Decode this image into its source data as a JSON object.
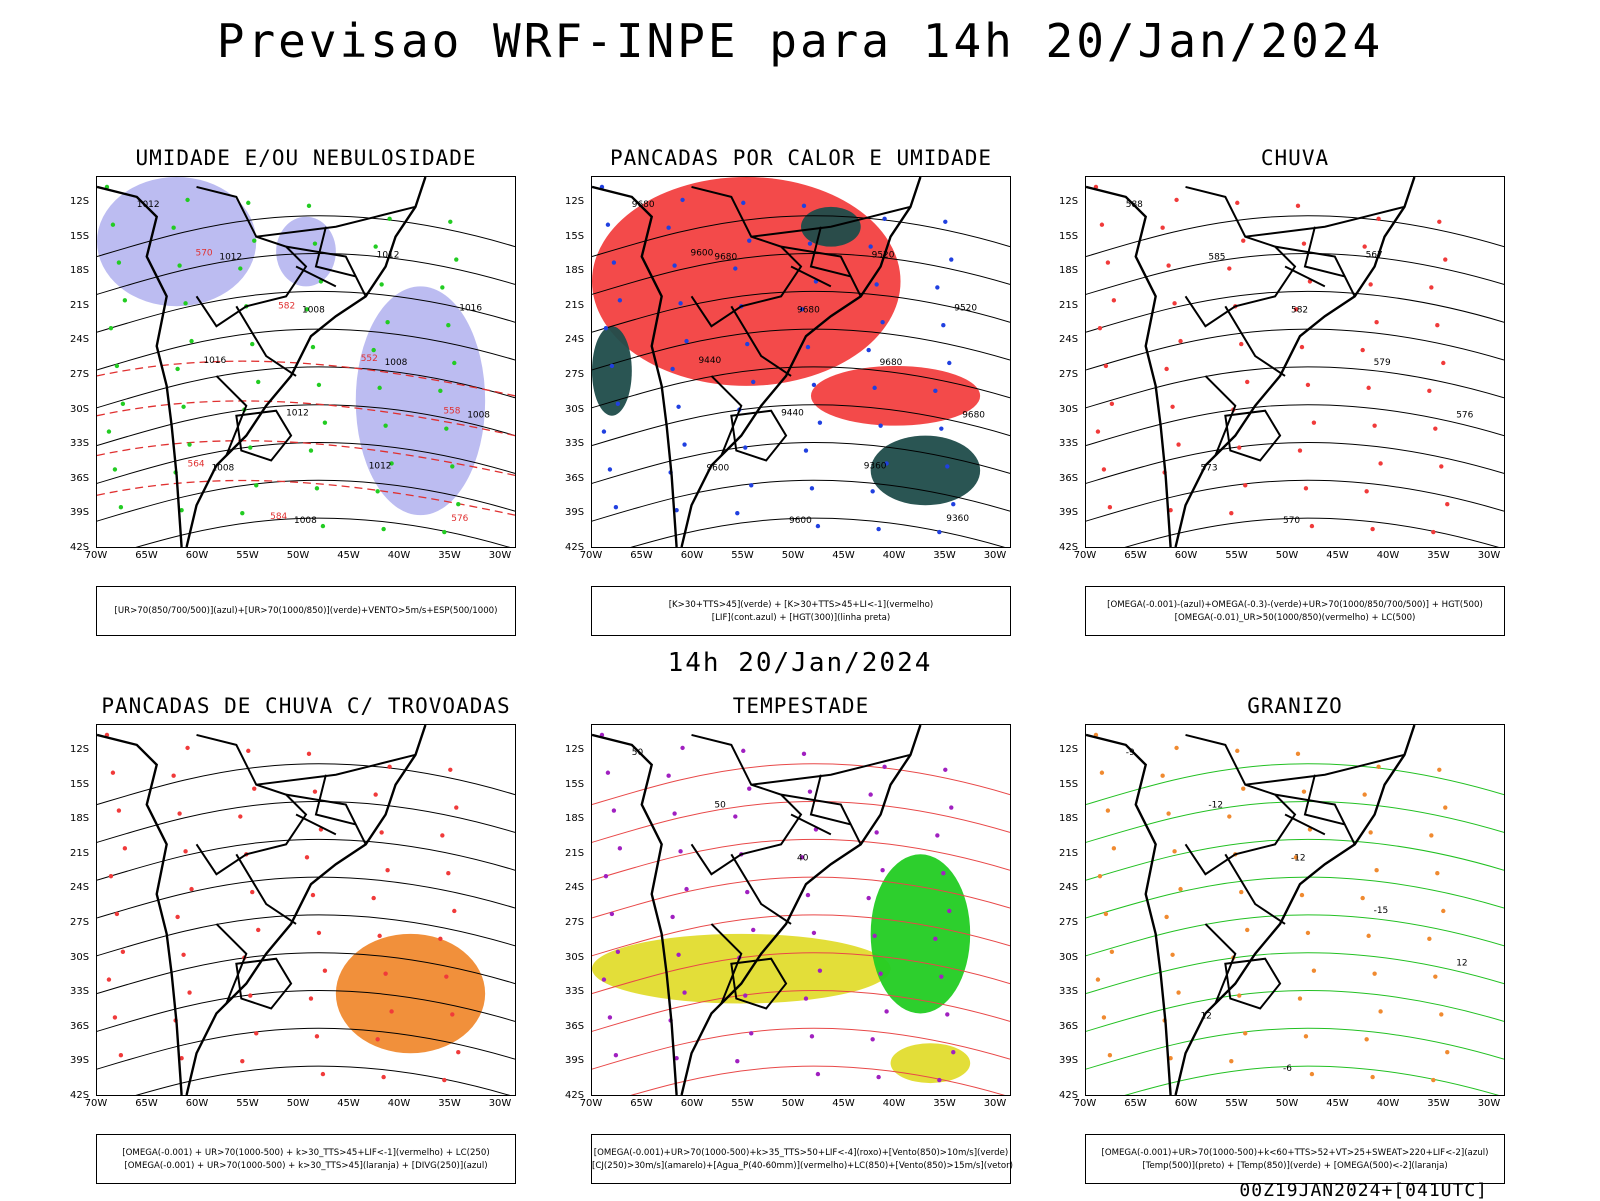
{
  "main_title": "Previsao WRF-INPE  para 14h 20/Jan/2024",
  "mid_title": "14h 20/Jan/2024",
  "footer": "00Z19JAN2024+[041UTC]",
  "lat_labels": [
    "12S",
    "15S",
    "18S",
    "21S",
    "24S",
    "27S",
    "30S",
    "33S",
    "36S",
    "39S",
    "42S"
  ],
  "lon_labels": [
    "70W",
    "65W",
    "60W",
    "55W",
    "50W",
    "45W",
    "40W",
    "35W",
    "30W"
  ],
  "panels": [
    {
      "title": "UMIDADE E/OU NEBULOSIDADE",
      "caption_lines": [
        "[UR>70(850/700/500)](azul)+[UR>70(1000/850)](verde)+VENTO>5m/s+ESP(500/1000)"
      ],
      "contour_labels": [
        "1012",
        "1012",
        "1008",
        "1008",
        "1008",
        "1008",
        "1008",
        "1012",
        "1016",
        "1016",
        "1012",
        "1012",
        "576",
        "570",
        "582",
        "552",
        "558",
        "564",
        "584"
      ]
    },
    {
      "title": "PANCADAS POR CALOR E UMIDADE",
      "caption_lines": [
        "[K>30+TTS>45](verde) + [K>30+TTS>45+LI<-1](vermelho)",
        "[LIF](cont.azul) + [HGT(300)](linha preta)"
      ],
      "contour_labels": [
        "9680",
        "9680",
        "9680",
        "9680",
        "9680",
        "9600",
        "9600",
        "9520",
        "9520",
        "9440",
        "9440",
        "9360",
        "9360",
        "9600"
      ]
    },
    {
      "title": "CHUVA",
      "caption_lines": [
        "[OMEGA(-0.001)-(azul)+OMEGA(-0.3)-(verde)+UR>70(1000/850/700/500)] + HGT(500)",
        "[OMEGA(-0.01)_UR>50(1000/850)(vermelho) + LC(500)"
      ],
      "contour_labels": [
        "588",
        "585",
        "582",
        "579",
        "576",
        "573",
        "570",
        "567"
      ]
    },
    {
      "title": "PANCADAS DE CHUVA C/ TROVOADAS",
      "caption_lines": [
        "[OMEGA(-0.001) + UR>70(1000-500) + k>30_TTS>45+LIF<-1](vermelho) + LC(250)",
        "[OMEGA(-0.001) + UR>70(1000-500) + k>30_TTS>45](laranja) + [DIVG(250)](azul)"
      ],
      "contour_labels": []
    },
    {
      "title": "TEMPESTADE",
      "caption_lines": [
        "[OMEGA(-0.001)+UR>70(1000-500)+k>35_TTS>50+LIF<-4](roxo)+[Vento(850)>10m/s](verde)",
        "[CJ(250)>30m/s](amarelo)+[Agua_P(40-60mm)](vermelho)+LC(850)+[Vento(850)>15m/s](vetor)"
      ],
      "contour_labels": [
        "50",
        "50",
        "40"
      ]
    },
    {
      "title": "GRANIZO",
      "caption_lines": [
        "[OMEGA(-0.001)+UR>70(1000-500)+k<60+TTS>52+VT>25+SWEAT>220+LIF<-2](azul)",
        "[Temp(500)](preto) + [Temp(850)](verde) + [OMEGA(500)<-2](laranja)"
      ],
      "contour_labels": [
        "-9",
        "-12",
        "-12",
        "-15",
        "12",
        "12",
        "-6"
      ]
    }
  ]
}
